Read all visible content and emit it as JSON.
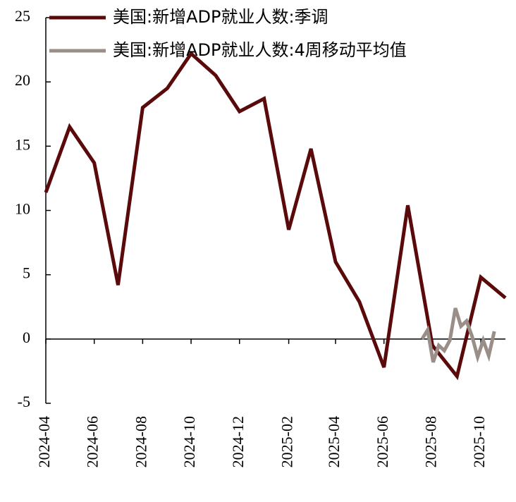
{
  "chart_data": {
    "type": "line",
    "x": [
      "2024-04",
      "2024-05",
      "2024-06",
      "2024-07",
      "2024-08",
      "2024-09",
      "2024-10",
      "2024-11",
      "2024-12",
      "2025-01",
      "2025-02",
      "2025-03",
      "2025-04",
      "2025-05",
      "2025-06",
      "2025-07",
      "2025-08",
      "2025-09",
      "2025-10",
      "2025-11"
    ],
    "series": [
      {
        "name": "美国:新增ADP就业人数:季调",
        "color": "#5a0a0a",
        "values": [
          11.4,
          16.5,
          13.7,
          4.2,
          18.0,
          19.5,
          22.2,
          20.5,
          17.7,
          18.7,
          8.5,
          14.8,
          6.0,
          2.9,
          -2.2,
          10.4,
          -0.5,
          -2.9,
          4.8,
          3.2
        ]
      },
      {
        "name": "美国:新增ADP就业人数:4周移动平均值",
        "color": "#9a8f88",
        "x": [
          "2025-07-19",
          "2025-07-26",
          "2025-08-02",
          "2025-08-09",
          "2025-08-16",
          "2025-08-23",
          "2025-08-30",
          "2025-09-06",
          "2025-09-13",
          "2025-09-20",
          "2025-09-27",
          "2025-10-04",
          "2025-10-11",
          "2025-10-18"
        ],
        "values": [
          0.0,
          0.7,
          -1.8,
          -0.5,
          -0.9,
          -0.1,
          2.4,
          1.0,
          1.4,
          0.2,
          -1.4,
          -0.1,
          -1.3,
          0.6
        ]
      }
    ],
    "xlim": [
      "2024-04",
      "2025-11"
    ],
    "xticks": [
      "2024-04",
      "2024-06",
      "2024-08",
      "2024-10",
      "2024-12",
      "2025-02",
      "2025-04",
      "2025-06",
      "2025-08",
      "2025-10"
    ],
    "ylim": [
      -5,
      25
    ],
    "yticks": [
      -5,
      0,
      5,
      10,
      15,
      20,
      25
    ],
    "legend": "top-left"
  }
}
